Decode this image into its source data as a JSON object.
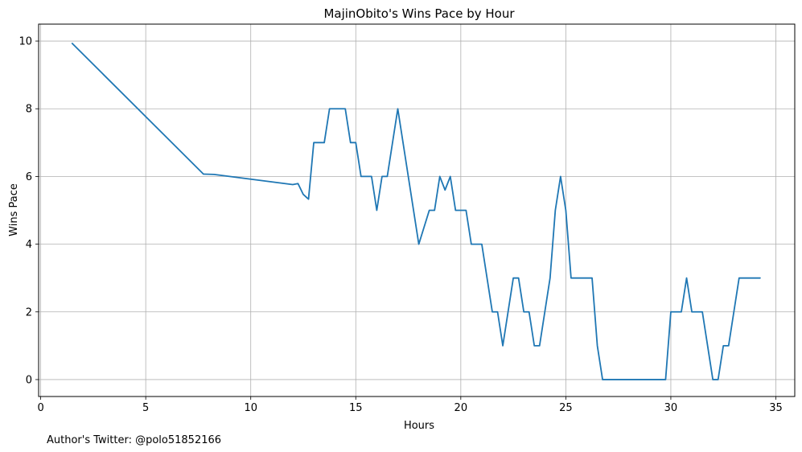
{
  "chart_data": {
    "type": "line",
    "title": "MajinObito's Wins Pace by Hour",
    "xlabel": "Hours",
    "ylabel": "Wins Pace",
    "xlim": [
      -0.1,
      35.9
    ],
    "ylim": [
      -0.5,
      10.5
    ],
    "xticks": [
      0,
      5,
      10,
      15,
      20,
      25,
      30,
      35
    ],
    "yticks": [
      0,
      2,
      4,
      6,
      8,
      10
    ],
    "grid": true,
    "line_color": "#1f77b4",
    "series": [
      {
        "x": [
          1.5,
          7.75,
          8.25,
          12.0,
          12.25,
          12.5,
          12.75,
          13.0,
          13.5,
          13.75,
          14.0,
          14.5,
          14.75,
          15.0,
          15.25,
          15.75,
          16.0,
          16.25,
          16.5,
          17.0,
          18.0,
          18.5,
          18.75,
          19.0,
          19.25,
          19.5,
          19.75,
          20.25,
          20.5,
          21.0,
          21.5,
          21.75,
          22.0,
          22.5,
          22.75,
          23.0,
          23.25,
          23.5,
          23.75,
          24.25,
          24.5,
          24.75,
          25.0,
          25.25,
          26.25,
          26.5,
          26.75,
          29.75,
          30.0,
          30.5,
          30.75,
          31.0,
          31.5,
          32.0,
          32.25,
          32.5,
          32.75,
          33.25,
          34.25
        ],
        "y": [
          9.93,
          6.07,
          6.06,
          5.76,
          5.79,
          5.47,
          5.33,
          7.0,
          7.0,
          8.0,
          8.0,
          8.0,
          7.0,
          7.0,
          6.0,
          6.0,
          5.0,
          6.0,
          6.0,
          8.0,
          4.0,
          5.0,
          5.0,
          6.0,
          5.6,
          6.0,
          5.0,
          5.0,
          4.0,
          4.0,
          2.0,
          2.0,
          1.0,
          3.0,
          3.0,
          2.0,
          2.0,
          1.0,
          1.0,
          3.0,
          5.0,
          6.0,
          5.0,
          3.0,
          3.0,
          1.0,
          0.0,
          0.0,
          2.0,
          2.0,
          3.0,
          2.0,
          2.0,
          0.0,
          0.0,
          1.0,
          1.0,
          3.0,
          3.0
        ]
      }
    ]
  },
  "footer_text": "Author's Twitter: @polo51852166"
}
